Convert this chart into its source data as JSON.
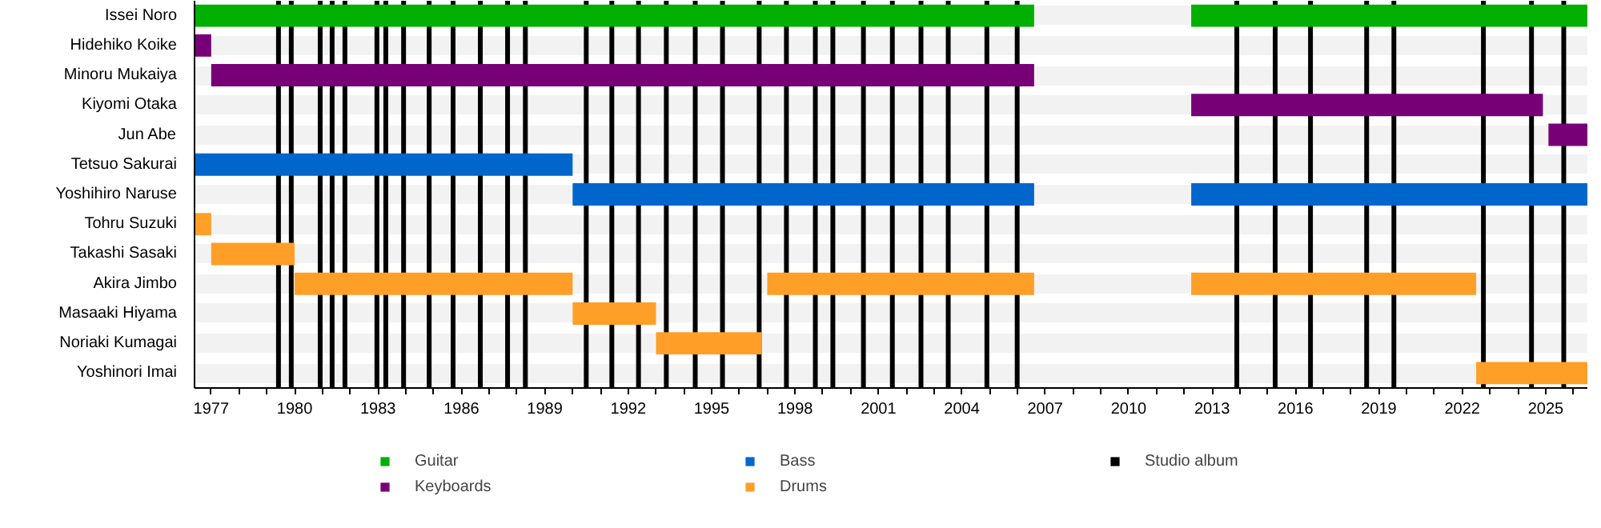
{
  "chart_data": {
    "type": "bar",
    "orientation": "horizontal",
    "categories": [
      "Issei Noro",
      "Hidehiko Koike",
      "Minoru Mukaiya",
      "Kiyomi Otaka",
      "Jun Abe",
      "Tetsuo Sakurai",
      "Yoshihiro Naruse",
      "Tohru Suzuki",
      "Takashi Sasaki",
      "Akira Jimbo",
      "Masaaki Hiyama",
      "Noriaki Kumagai",
      "Yoshinori Imai"
    ],
    "series": [
      {
        "name": "Guitar",
        "color": "#00b000",
        "base": [
          1976.4,
          null,
          null,
          null,
          null,
          null,
          null,
          null,
          null,
          null,
          null,
          null,
          null
        ],
        "values": [
          30.2,
          null,
          null,
          null,
          null,
          null,
          null,
          null,
          null,
          null,
          null,
          null,
          null
        ]
      },
      {
        "color": "#00b000",
        "base": [
          2012.25,
          null,
          null,
          null,
          null,
          null,
          null,
          null,
          null,
          null,
          null,
          null,
          null
        ],
        "values": [
          14.25,
          null,
          null,
          null,
          null,
          null,
          null,
          null,
          null,
          null,
          null,
          null,
          null
        ]
      },
      {
        "name": "Keyboards",
        "color": "#770077",
        "base": [
          null,
          1976.4,
          1977.0,
          2012.25,
          2025.1,
          null,
          null,
          null,
          null,
          null,
          null,
          null,
          null
        ],
        "values": [
          null,
          0.6,
          29.6,
          12.65,
          1.4,
          null,
          null,
          null,
          null,
          null,
          null,
          null,
          null
        ]
      },
      {
        "name": "Bass",
        "color": "#0066cc",
        "base": [
          null,
          null,
          null,
          null,
          null,
          1976.4,
          1990.0,
          null,
          null,
          null,
          null,
          null,
          null
        ],
        "values": [
          null,
          null,
          null,
          null,
          null,
          13.6,
          16.6,
          null,
          null,
          null,
          null,
          null,
          null
        ]
      },
      {
        "color": "#0066cc",
        "base": [
          null,
          null,
          null,
          null,
          null,
          null,
          2012.25,
          null,
          null,
          null,
          null,
          null,
          null
        ],
        "values": [
          null,
          null,
          null,
          null,
          null,
          null,
          14.25,
          null,
          null,
          null,
          null,
          null,
          null
        ]
      },
      {
        "name": "Drums",
        "color": "#ff9f28",
        "base": [
          null,
          null,
          null,
          null,
          null,
          null,
          null,
          1976.4,
          1977.0,
          1980.0,
          1990.0,
          1993.0,
          2022.5
        ],
        "values": [
          null,
          null,
          null,
          null,
          null,
          null,
          null,
          0.6,
          3.0,
          10.0,
          3.0,
          3.8,
          4.0
        ]
      },
      {
        "color": "#ff9f28",
        "base": [
          null,
          null,
          null,
          null,
          null,
          null,
          null,
          null,
          null,
          1997.0,
          null,
          null,
          null
        ],
        "values": [
          null,
          null,
          null,
          null,
          null,
          null,
          null,
          null,
          null,
          9.6,
          null,
          null,
          null
        ]
      },
      {
        "color": "#ff9f28",
        "base": [
          null,
          null,
          null,
          null,
          null,
          null,
          null,
          null,
          null,
          2012.25,
          null,
          null,
          null
        ],
        "values": [
          null,
          null,
          null,
          null,
          null,
          null,
          null,
          null,
          null,
          10.25,
          null,
          null,
          null
        ]
      }
    ],
    "xlim": [
      1976.4,
      2026.5
    ],
    "xticks": [
      1977,
      {
        "value": 1978,
        "label": null
      },
      {
        "value": 1979,
        "label": null
      },
      1980,
      {
        "value": 1981,
        "label": null
      },
      {
        "value": 1982,
        "label": null
      },
      1983,
      {
        "value": 1984,
        "label": null
      },
      {
        "value": 1985,
        "label": null
      },
      1986,
      {
        "value": 1987,
        "label": null
      },
      {
        "value": 1988,
        "label": null
      },
      1989,
      {
        "value": 1990,
        "label": null
      },
      {
        "value": 1991,
        "label": null
      },
      1992,
      {
        "value": 1993,
        "label": null
      },
      {
        "value": 1994,
        "label": null
      },
      1995,
      {
        "value": 1996,
        "label": null
      },
      {
        "value": 1997,
        "label": null
      },
      1998,
      {
        "value": 1999,
        "label": null
      },
      {
        "value": 2000,
        "label": null
      },
      2001,
      {
        "value": 2002,
        "label": null
      },
      {
        "value": 2003,
        "label": null
      },
      2004,
      {
        "value": 2005,
        "label": null
      },
      {
        "value": 2006,
        "label": null
      },
      2007,
      {
        "value": 2008,
        "label": null
      },
      {
        "value": 2009,
        "label": null
      },
      2010,
      {
        "value": 2011,
        "label": null
      },
      {
        "value": 2012,
        "label": null
      },
      2013,
      {
        "value": 2014,
        "label": null
      },
      {
        "value": 2015,
        "label": null
      },
      2016,
      {
        "value": 2017,
        "label": null
      },
      {
        "value": 2018,
        "label": null
      },
      2019,
      {
        "value": 2020,
        "label": null
      },
      {
        "value": 2021,
        "label": null
      },
      2022,
      {
        "value": 2023,
        "label": null
      },
      {
        "value": 2024,
        "label": null
      },
      2025,
      {
        "value": 2026,
        "label": null
      }
    ],
    "ref_lines": [
      {
        "axis": "x",
        "value": 1979.42,
        "label": "Studio album",
        "color": "#000000"
      },
      {
        "axis": "x",
        "value": 1979.88,
        "color": "#000000"
      },
      {
        "axis": "x",
        "value": 1980.92,
        "color": "#000000"
      },
      {
        "axis": "x",
        "value": 1981.35,
        "color": "#000000"
      },
      {
        "axis": "x",
        "value": 1981.81,
        "color": "#000000"
      },
      {
        "axis": "x",
        "value": 1982.96,
        "color": "#000000"
      },
      {
        "axis": "x",
        "value": 1983.28,
        "color": "#000000"
      },
      {
        "axis": "x",
        "value": 1983.92,
        "color": "#000000"
      },
      {
        "axis": "x",
        "value": 1984.84,
        "color": "#000000"
      },
      {
        "axis": "x",
        "value": 1985.7,
        "color": "#000000"
      },
      {
        "axis": "x",
        "value": 1986.68,
        "color": "#000000"
      },
      {
        "axis": "x",
        "value": 1987.66,
        "color": "#000000"
      },
      {
        "axis": "x",
        "value": 1988.3,
        "color": "#000000"
      },
      {
        "axis": "x",
        "value": 1990.49,
        "color": "#000000"
      },
      {
        "axis": "x",
        "value": 1991.41,
        "color": "#000000"
      },
      {
        "axis": "x",
        "value": 1992.37,
        "color": "#000000"
      },
      {
        "axis": "x",
        "value": 1993.37,
        "color": "#000000"
      },
      {
        "axis": "x",
        "value": 1994.41,
        "color": "#000000"
      },
      {
        "axis": "x",
        "value": 1995.39,
        "color": "#000000"
      },
      {
        "axis": "x",
        "value": 1996.71,
        "color": "#000000"
      },
      {
        "axis": "x",
        "value": 1997.69,
        "color": "#000000"
      },
      {
        "axis": "x",
        "value": 1998.73,
        "color": "#000000"
      },
      {
        "axis": "x",
        "value": 1999.36,
        "color": "#000000"
      },
      {
        "axis": "x",
        "value": 2000.46,
        "color": "#000000"
      },
      {
        "axis": "x",
        "value": 2001.5,
        "color": "#000000"
      },
      {
        "axis": "x",
        "value": 2002.53,
        "color": "#000000"
      },
      {
        "axis": "x",
        "value": 2003.51,
        "color": "#000000"
      },
      {
        "axis": "x",
        "value": 2004.9,
        "color": "#000000"
      },
      {
        "axis": "x",
        "value": 2005.99,
        "color": "#000000"
      },
      {
        "axis": "x",
        "value": 2013.89,
        "color": "#000000"
      },
      {
        "axis": "x",
        "value": 2015.27,
        "color": "#000000"
      },
      {
        "axis": "x",
        "value": 2016.54,
        "color": "#000000"
      },
      {
        "axis": "x",
        "value": 2018.56,
        "color": "#000000"
      },
      {
        "axis": "x",
        "value": 2019.54,
        "color": "#000000"
      },
      {
        "axis": "x",
        "value": 2022.76,
        "color": "#000000"
      },
      {
        "axis": "x",
        "value": 2024.49,
        "color": "#000000"
      },
      {
        "axis": "x",
        "value": 2025.65,
        "color": "#000000"
      }
    ],
    "grid": "y",
    "legend": "bottom"
  }
}
